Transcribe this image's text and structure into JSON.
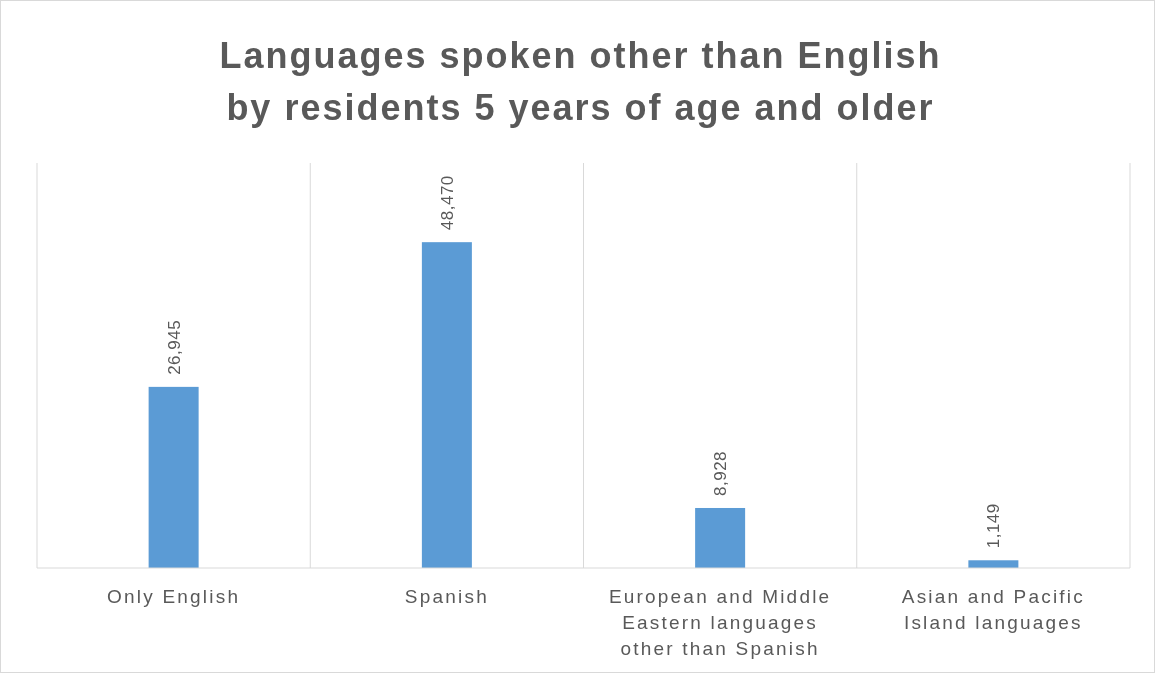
{
  "chart_data": {
    "type": "bar",
    "title": "Languages spoken other than English by residents 5 years of age and older",
    "categories": [
      "Only English",
      "Spanish",
      "European and Middle Eastern languages other than Spanish",
      "Asian and Pacific Island languages"
    ],
    "values": [
      26945,
      48470,
      8928,
      1149
    ],
    "color": "#5b9bd5",
    "value_labels": [
      "26,945",
      "48,470",
      "8,928",
      "1,149"
    ],
    "grid": "x",
    "tick_labels": "x"
  }
}
